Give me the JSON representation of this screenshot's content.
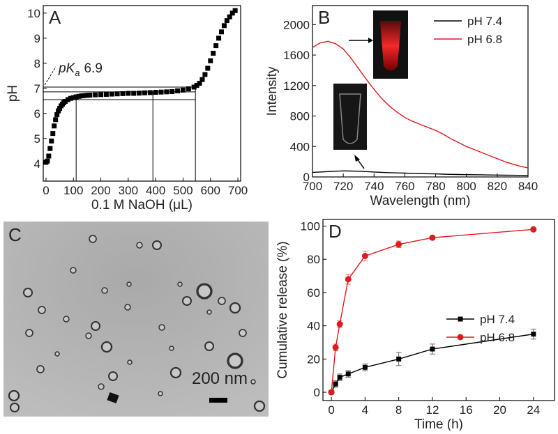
{
  "chart_data": [
    {
      "type": "scatter",
      "panel": "A",
      "xlabel": "0.1 M NaOH (μL)",
      "ylabel": "pH",
      "x": [
        0,
        5,
        10,
        15,
        20,
        25,
        30,
        35,
        40,
        45,
        50,
        55,
        60,
        65,
        70,
        80,
        90,
        100,
        110,
        120,
        130,
        140,
        150,
        160,
        180,
        200,
        220,
        240,
        260,
        280,
        300,
        320,
        340,
        360,
        380,
        400,
        420,
        440,
        460,
        480,
        500,
        520,
        540,
        550,
        560,
        570,
        580,
        590,
        600,
        610,
        620,
        630,
        640,
        650,
        660,
        670,
        680,
        690
      ],
      "series": [
        {
          "color": "#000000",
          "marker": "square",
          "values": [
            4.05,
            4.1,
            4.3,
            4.6,
            4.9,
            5.2,
            5.5,
            5.75,
            5.95,
            6.1,
            6.2,
            6.3,
            6.37,
            6.43,
            6.48,
            6.55,
            6.6,
            6.63,
            6.66,
            6.68,
            6.7,
            6.71,
            6.72,
            6.73,
            6.74,
            6.75,
            6.76,
            6.77,
            6.78,
            6.79,
            6.8,
            6.8,
            6.81,
            6.82,
            6.83,
            6.84,
            6.85,
            6.86,
            6.87,
            6.9,
            6.93,
            6.98,
            7.05,
            7.12,
            7.2,
            7.35,
            7.55,
            7.8,
            8.1,
            8.4,
            8.7,
            9.0,
            9.25,
            9.5,
            9.7,
            9.85,
            10.0,
            10.1
          ]
        }
      ],
      "xlim": [
        -10,
        710
      ],
      "xticks": [
        0,
        100,
        200,
        300,
        400,
        500,
        600,
        700
      ],
      "ylim": [
        3.3,
        10.3
      ],
      "yticks": [
        4,
        5,
        6,
        7,
        8,
        9,
        10
      ],
      "hlines": [
        7.05,
        6.86,
        6.55
      ],
      "hline_end": 545,
      "vlines": [
        [
          110,
          6.55
        ],
        [
          390,
          6.86
        ],
        [
          545,
          7.05
        ]
      ],
      "annotation": [
        "pK",
        "a",
        "6.9"
      ]
    },
    {
      "type": "line",
      "panel": "B",
      "xlabel": "Wavelength (nm)",
      "ylabel": "Intensity",
      "x": [
        700,
        705,
        710,
        715,
        720,
        725,
        730,
        735,
        740,
        745,
        750,
        755,
        760,
        765,
        770,
        775,
        780,
        785,
        790,
        795,
        800,
        805,
        810,
        815,
        820,
        825,
        830,
        835,
        840
      ],
      "series": [
        {
          "name": "pH 7.4",
          "color": "#000000",
          "values": [
            60,
            65,
            70,
            75,
            80,
            78,
            75,
            70,
            65,
            60,
            56,
            53,
            50,
            47,
            44,
            42,
            40,
            37,
            34,
            32,
            30,
            29,
            28,
            26,
            25,
            23,
            22,
            21,
            20
          ]
        },
        {
          "name": "pH 6.8",
          "color": "#e0191e",
          "values": [
            1700,
            1760,
            1780,
            1750,
            1680,
            1560,
            1420,
            1280,
            1150,
            1030,
            930,
            850,
            780,
            730,
            690,
            650,
            610,
            560,
            500,
            450,
            400,
            360,
            320,
            280,
            240,
            200,
            170,
            140,
            120
          ]
        }
      ],
      "xlim": [
        700,
        840
      ],
      "xticks": [
        700,
        720,
        740,
        760,
        780,
        800,
        820,
        840
      ],
      "ylim": [
        0,
        2250
      ],
      "yticks": [
        0,
        400,
        800,
        1200,
        1600,
        2000
      ],
      "legend": "upper right"
    },
    {
      "type": "line",
      "panel": "D",
      "xlabel": "Time (h)",
      "ylabel": "Cumulative release (%)",
      "x": [
        0,
        0.5,
        1,
        2,
        4,
        8,
        12,
        24
      ],
      "series": [
        {
          "name": "pH 7.4",
          "color": "#000000",
          "marker": "square",
          "values": [
            0,
            5,
            9,
            11,
            15,
            20,
            26,
            35
          ],
          "errors": [
            1,
            2,
            2,
            2,
            2,
            4,
            3,
            3
          ]
        },
        {
          "name": "pH 6.8",
          "color": "#e0191e",
          "marker": "circle",
          "values": [
            0,
            27,
            41,
            68,
            82,
            89,
            93,
            98
          ],
          "errors": [
            1,
            2,
            2,
            3,
            3,
            2,
            1,
            1
          ]
        }
      ],
      "xlim": [
        -1,
        26.5
      ],
      "xticks": [
        0,
        4,
        8,
        12,
        16,
        20,
        24
      ],
      "ylim": [
        -5,
        104
      ],
      "yticks": [
        0,
        20,
        40,
        60,
        80,
        100
      ],
      "legend": "center right"
    }
  ],
  "panel_c": {
    "label": "C",
    "scale_bar": "200 nm"
  }
}
